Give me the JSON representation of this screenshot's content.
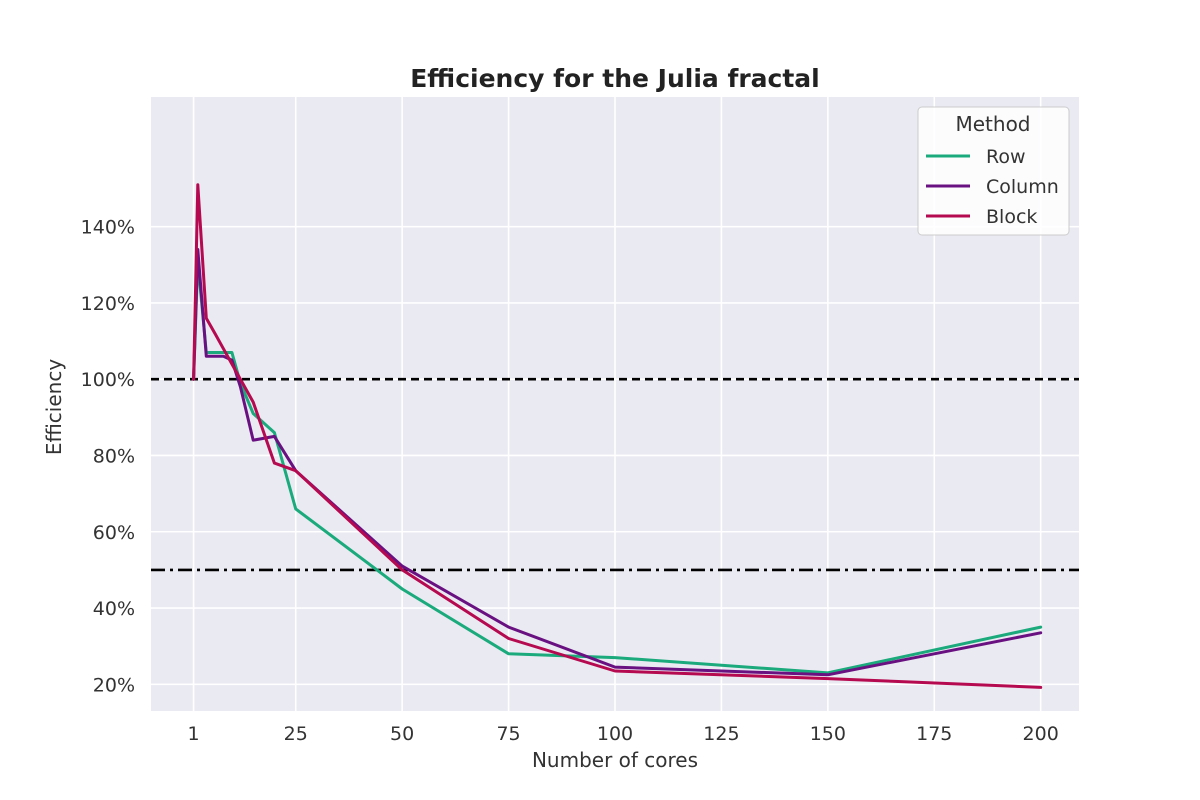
{
  "chart_data": {
    "type": "line",
    "title": "Efficiency for the Julia fractal",
    "xlabel": "Number of cores",
    "ylabel": "Efficiency",
    "xlim": [
      -9,
      209
    ],
    "ylim": [
      0.13,
      1.74
    ],
    "x_ticks": [
      1,
      25,
      50,
      75,
      100,
      125,
      150,
      175,
      200
    ],
    "x_tick_labels": [
      "1",
      "25",
      "50",
      "75",
      "100",
      "125",
      "150",
      "175",
      "200"
    ],
    "y_ticks": [
      0.2,
      0.4,
      0.6,
      0.8,
      1.0,
      1.2,
      1.4
    ],
    "y_tick_labels": [
      "20%",
      "40%",
      "60%",
      "80%",
      "100%",
      "120%",
      "140%"
    ],
    "grid": true,
    "legend": {
      "title": "Method",
      "placement": "top-right"
    },
    "reference_lines": [
      {
        "y": 1.0,
        "style": "dashed",
        "color": "#000000"
      },
      {
        "y": 0.5,
        "style": "dashdot",
        "color": "#000000"
      }
    ],
    "series": [
      {
        "name": "Row",
        "color": "#1aaa7b",
        "x": [
          1,
          2,
          4,
          6,
          8,
          10,
          12,
          15,
          20,
          25,
          50,
          75,
          100,
          150,
          200
        ],
        "y": [
          1.0,
          1.31,
          1.07,
          1.07,
          1.07,
          1.07,
          0.99,
          0.91,
          0.86,
          0.66,
          0.45,
          0.28,
          0.27,
          0.23,
          0.35
        ]
      },
      {
        "name": "Column",
        "color": "#6a1181",
        "x": [
          1,
          2,
          4,
          6,
          8,
          10,
          12,
          15,
          20,
          25,
          50,
          75,
          100,
          150,
          200
        ],
        "y": [
          1.0,
          1.34,
          1.06,
          1.06,
          1.06,
          1.05,
          0.98,
          0.84,
          0.85,
          0.76,
          0.51,
          0.35,
          0.245,
          0.225,
          0.335
        ]
      },
      {
        "name": "Block",
        "color": "#b50a4f",
        "x": [
          1,
          2,
          4,
          6,
          8,
          10,
          12,
          15,
          20,
          25,
          50,
          75,
          100,
          150,
          200
        ],
        "y": [
          1.0,
          1.51,
          1.16,
          1.12,
          1.08,
          1.04,
          1.0,
          0.94,
          0.78,
          0.76,
          0.5,
          0.32,
          0.235,
          0.215,
          0.192
        ]
      }
    ]
  }
}
